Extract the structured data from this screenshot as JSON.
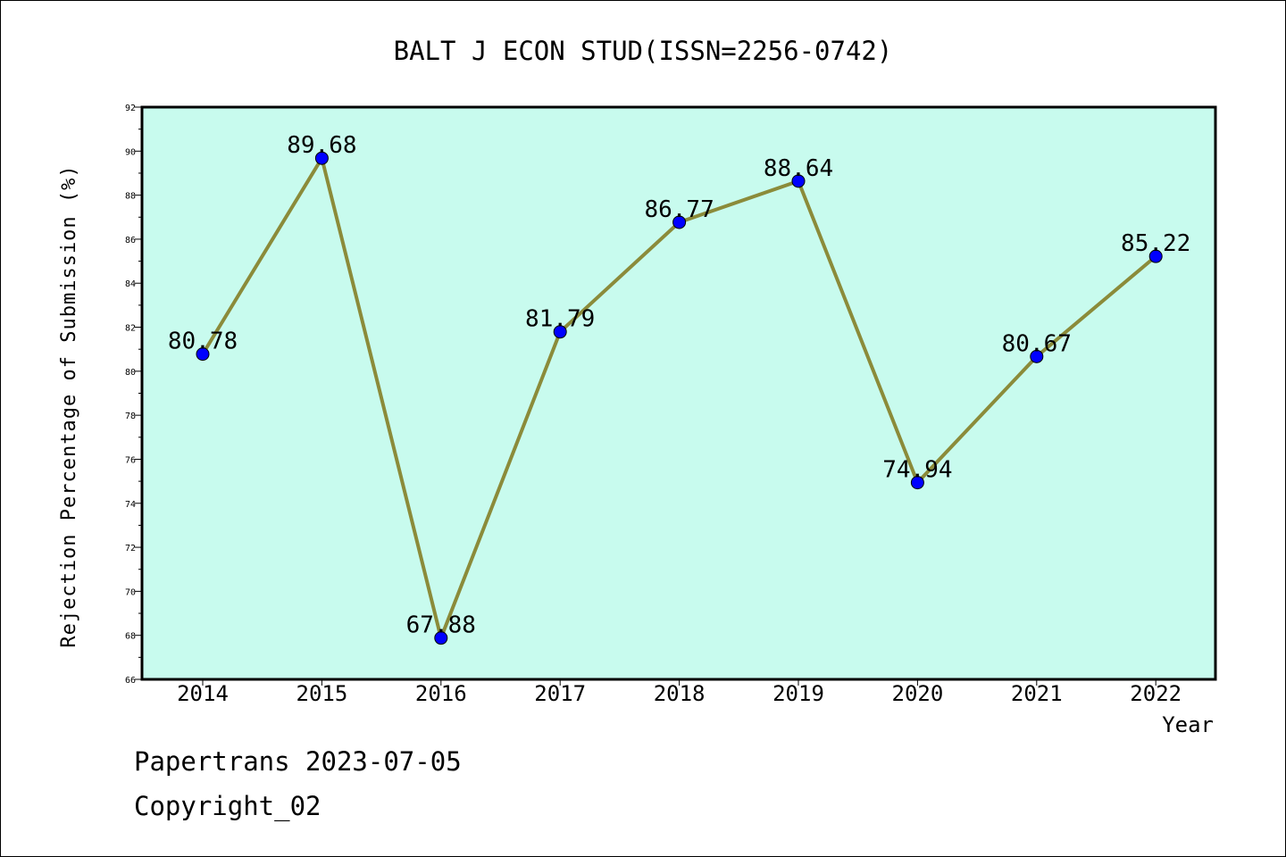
{
  "chart_data": {
    "type": "line",
    "title": "BALT J ECON STUD(ISSN=2256-0742)",
    "xlabel": "Year",
    "ylabel": "Rejection Percentage of Submission (%)",
    "x": [
      "2014",
      "2015",
      "2016",
      "2017",
      "2018",
      "2019",
      "2020",
      "2021",
      "2022"
    ],
    "series": [
      {
        "values": [
          80.78,
          89.68,
          67.88,
          81.79,
          86.77,
          88.64,
          74.94,
          80.67,
          85.22
        ],
        "labels": [
          "80.78",
          "89.68",
          "67.88",
          "81.79",
          "86.77",
          "88.64",
          "74.94",
          "80.67",
          "85.22"
        ],
        "line_color": "#8b8b3a",
        "marker_color": "#0000ff"
      }
    ],
    "ylim": [
      66,
      92
    ],
    "yticks": [
      "66",
      "68",
      "70",
      "72",
      "74",
      "76",
      "78",
      "80",
      "82",
      "84",
      "86",
      "88",
      "90",
      "92"
    ],
    "plot_background": "#c8fbee",
    "grid": false,
    "legend": "none"
  },
  "footer": {
    "line1": "Papertrans 2023-07-05",
    "line2": "Copyright_02"
  }
}
